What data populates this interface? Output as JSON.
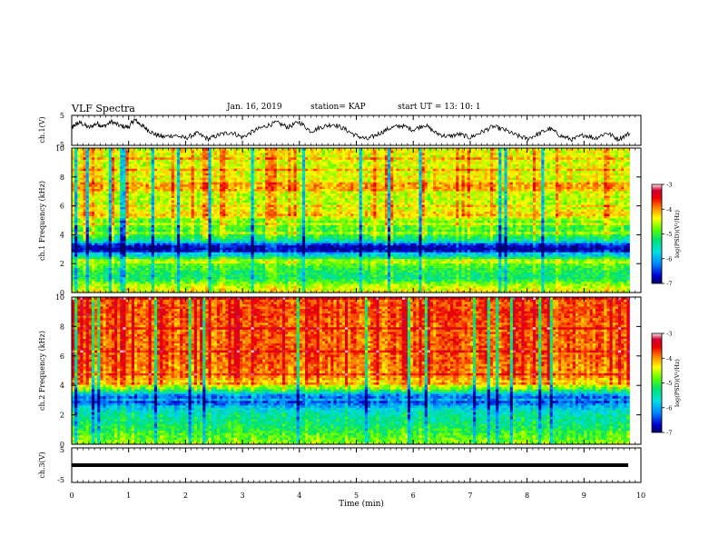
{
  "header": {
    "title": "VLF Spectra",
    "date": "Jan. 16, 2019",
    "station": "station= KAP",
    "start": "start  UT  =   13: 10: 1"
  },
  "chart_data": [
    {
      "type": "line",
      "panel": "ch1-waveform",
      "xlabel": "",
      "ylabel": "ch.1(V)",
      "xlim": [
        0,
        10
      ],
      "ylim": [
        -5,
        5
      ],
      "yticks": [
        "5",
        "-5"
      ],
      "x": [
        0,
        0.05,
        0.15,
        0.3,
        0.45,
        0.55,
        0.7,
        0.85,
        1.0,
        1.1,
        1.2,
        1.3,
        1.45,
        1.6,
        1.8,
        2.0,
        2.2,
        2.4,
        2.6,
        2.8,
        3.0,
        3.2,
        3.4,
        3.6,
        3.8,
        4.0,
        4.2,
        4.4,
        4.6,
        4.8,
        5.0,
        5.2,
        5.4,
        5.6,
        5.8,
        6.0,
        6.2,
        6.4,
        6.6,
        6.8,
        7.0,
        7.2,
        7.4,
        7.6,
        7.8,
        8.0,
        8.2,
        8.4,
        8.6,
        8.8,
        9.0,
        9.2,
        9.4,
        9.6,
        9.8
      ],
      "series": [
        {
          "values": [
            0.5,
            1.8,
            2.6,
            0.9,
            2.4,
            1.2,
            2.9,
            1.5,
            1.0,
            3.6,
            2.1,
            0.7,
            -1.2,
            -2.2,
            -1.6,
            -2.6,
            -1.0,
            -2.9,
            -1.4,
            -0.6,
            -2.3,
            -0.2,
            1.4,
            2.6,
            1.1,
            2.8,
            -0.3,
            1.2,
            2.1,
            0.4,
            -1.8,
            -3.0,
            -1.0,
            0.8,
            1.6,
            0.2,
            1.9,
            -0.9,
            -2.1,
            -1.3,
            -2.4,
            -0.6,
            1.3,
            0.2,
            -1.6,
            -2.8,
            -1.2,
            0.6,
            -1.9,
            -3.1,
            -1.5,
            -2.6,
            -0.8,
            -2.9,
            -1.0
          ]
        }
      ]
    },
    {
      "type": "heatmap",
      "panel": "ch1-spectrogram",
      "ylabel": "ch.1  Frequency (kHz)",
      "xlim": [
        0,
        10
      ],
      "ylim": [
        0,
        10
      ],
      "yticks": [
        "0",
        "2",
        "4",
        "6",
        "8",
        "10"
      ],
      "colorbar_label": "log(PSD)(V²/Hz)",
      "colorbar_ticks": [
        "-3",
        "-4",
        "-5",
        "-6",
        "-7"
      ],
      "colorbar_range": [
        -7,
        -3
      ],
      "freq_profile_khz": [
        [
          0,
          -4.6
        ],
        [
          0.5,
          -4.8
        ],
        [
          1.0,
          -5.4
        ],
        [
          1.5,
          -5.3
        ],
        [
          1.9,
          -5.1
        ],
        [
          2.2,
          -4.7
        ],
        [
          2.5,
          -5.6
        ],
        [
          2.8,
          -6.5
        ],
        [
          3.0,
          -6.8
        ],
        [
          3.3,
          -6.6
        ],
        [
          3.6,
          -5.6
        ],
        [
          4.0,
          -5.2
        ],
        [
          4.5,
          -5.1
        ],
        [
          5.0,
          -5.0
        ],
        [
          5.4,
          -4.4
        ],
        [
          6.0,
          -4.8
        ],
        [
          7.0,
          -4.7
        ],
        [
          8.0,
          -4.6
        ],
        [
          9.0,
          -4.7
        ],
        [
          10.0,
          -4.6
        ]
      ]
    },
    {
      "type": "heatmap",
      "panel": "ch2-spectrogram",
      "ylabel": "ch.2  Frequency (kHz)",
      "xlim": [
        0,
        10
      ],
      "ylim": [
        0,
        10
      ],
      "yticks": [
        "0",
        "2",
        "4",
        "6",
        "8",
        "10"
      ],
      "colorbar_label": "log(PSD)(V²/Hz)",
      "colorbar_ticks": [
        "-3",
        "-4",
        "-5",
        "-6",
        "-7"
      ],
      "colorbar_range": [
        -7,
        -3
      ],
      "freq_profile_khz": [
        [
          0,
          -4.9
        ],
        [
          0.5,
          -5.1
        ],
        [
          1.0,
          -5.3
        ],
        [
          1.5,
          -5.5
        ],
        [
          2.0,
          -5.6
        ],
        [
          2.5,
          -5.9
        ],
        [
          2.8,
          -6.3
        ],
        [
          3.0,
          -6.5
        ],
        [
          3.4,
          -6.1
        ],
        [
          3.8,
          -5.0
        ],
        [
          4.5,
          -4.3
        ],
        [
          5.0,
          -4.2
        ],
        [
          6.0,
          -4.1
        ],
        [
          7.0,
          -4.1
        ],
        [
          8.0,
          -4.1
        ],
        [
          9.0,
          -4.0
        ],
        [
          10.0,
          -4.1
        ]
      ]
    },
    {
      "type": "line",
      "panel": "ch3-waveform",
      "xlabel": "Time  (min)",
      "ylabel": "ch.3(V)",
      "xlim": [
        0,
        10
      ],
      "ylim": [
        -5,
        5
      ],
      "yticks": [
        "5",
        "-5"
      ],
      "x": [
        0,
        9.8
      ],
      "series": [
        {
          "values": [
            0,
            0
          ]
        }
      ]
    }
  ],
  "xaxis": {
    "ticks": [
      "0",
      "1",
      "2",
      "3",
      "4",
      "5",
      "6",
      "7",
      "8",
      "9",
      "10"
    ],
    "label": "Time  (min)"
  },
  "colors": {
    "background": "#ffffff",
    "axes": "#000000",
    "colormap": [
      "#000066",
      "#0000d0",
      "#0088ff",
      "#00e0e0",
      "#00e070",
      "#60ff00",
      "#ffff00",
      "#ff8800",
      "#ee0000",
      "#cc0033",
      "#ffeaea"
    ]
  }
}
